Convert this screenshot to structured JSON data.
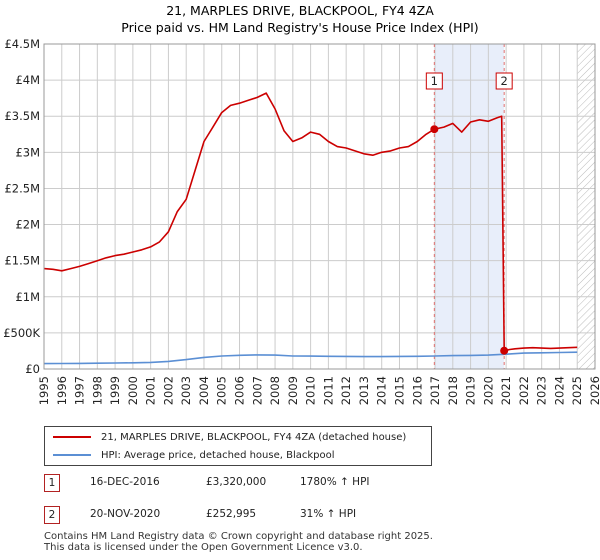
{
  "chart_data": {
    "type": "line",
    "title": "21, MARPLES DRIVE, BLACKPOOL, FY4 4ZA",
    "subtitle": "Price paid vs. HM Land Registry's House Price Index (HPI)",
    "xlabel": "",
    "ylabel": "",
    "xlim": [
      1995,
      2026
    ],
    "ylim": [
      0,
      4500000
    ],
    "y_ticks": [
      0,
      500000,
      1000000,
      1500000,
      2000000,
      2500000,
      3000000,
      3500000,
      4000000,
      4500000
    ],
    "y_tick_labels": [
      "£0",
      "£500K",
      "£1M",
      "£1.5M",
      "£2M",
      "£2.5M",
      "£3M",
      "£3.5M",
      "£4M",
      "£4.5M"
    ],
    "x_ticks": [
      1995,
      1996,
      1997,
      1998,
      1999,
      2000,
      2001,
      2002,
      2003,
      2004,
      2005,
      2006,
      2007,
      2008,
      2009,
      2010,
      2011,
      2012,
      2013,
      2014,
      2015,
      2016,
      2017,
      2018,
      2019,
      2020,
      2021,
      2022,
      2023,
      2024,
      2025,
      2026
    ],
    "x_tick_labels": [
      "1995",
      "1996",
      "1997",
      "1998",
      "1999",
      "2000",
      "2001",
      "2002",
      "2003",
      "2004",
      "2005",
      "2006",
      "2007",
      "2008",
      "2009",
      "2010",
      "2011",
      "2012",
      "2013",
      "2014",
      "2015",
      "2016",
      "2017",
      "2018",
      "2019",
      "2020",
      "2021",
      "2022",
      "2023",
      "2024",
      "2025",
      "2026"
    ],
    "grid": true,
    "series": [
      {
        "name": "21, MARPLES DRIVE, BLACKPOOL, FY4 4ZA (detached house)",
        "color": "#cc0000",
        "x": [
          1995.0,
          1995.5,
          1996.0,
          1996.5,
          1997.0,
          1997.5,
          1998.0,
          1998.5,
          1999.0,
          1999.5,
          2000.0,
          2000.5,
          2001.0,
          2001.5,
          2002.0,
          2002.5,
          2003.0,
          2003.5,
          2004.0,
          2004.5,
          2005.0,
          2005.5,
          2006.0,
          2006.5,
          2007.0,
          2007.5,
          2008.0,
          2008.5,
          2009.0,
          2009.5,
          2010.0,
          2010.5,
          2011.0,
          2011.5,
          2012.0,
          2012.5,
          2013.0,
          2013.5,
          2014.0,
          2014.5,
          2015.0,
          2015.5,
          2016.0,
          2016.5,
          2016.96,
          2017.5,
          2018.0,
          2018.5,
          2019.0,
          2019.5,
          2020.0,
          2020.5,
          2020.75,
          2020.89,
          2021.2,
          2021.5,
          2022.0,
          2022.5,
          2023.0,
          2023.5,
          2024.0,
          2024.5,
          2025.0
        ],
        "values": [
          1390000,
          1380000,
          1360000,
          1390000,
          1420000,
          1460000,
          1500000,
          1540000,
          1570000,
          1590000,
          1620000,
          1650000,
          1690000,
          1760000,
          1900000,
          2180000,
          2350000,
          2750000,
          3150000,
          3350000,
          3550000,
          3650000,
          3680000,
          3720000,
          3760000,
          3820000,
          3600000,
          3300000,
          3150000,
          3200000,
          3280000,
          3250000,
          3150000,
          3080000,
          3060000,
          3020000,
          2980000,
          2960000,
          3000000,
          3020000,
          3060000,
          3080000,
          3150000,
          3250000,
          3320000,
          3350000,
          3400000,
          3280000,
          3420000,
          3450000,
          3430000,
          3480000,
          3500000,
          252995,
          270000,
          280000,
          290000,
          295000,
          290000,
          285000,
          290000,
          295000,
          300000
        ]
      },
      {
        "name": "HPI: Average price, detached house, Blackpool",
        "color": "#5b8fd4",
        "x": [
          1995.0,
          1996.0,
          1997.0,
          1998.0,
          1999.0,
          2000.0,
          2001.0,
          2002.0,
          2003.0,
          2004.0,
          2005.0,
          2006.0,
          2007.0,
          2008.0,
          2009.0,
          2010.0,
          2011.0,
          2012.0,
          2013.0,
          2014.0,
          2015.0,
          2016.0,
          2017.0,
          2018.0,
          2019.0,
          2020.0,
          2021.0,
          2022.0,
          2023.0,
          2024.0,
          2025.0
        ],
        "values": [
          75000,
          76000,
          78000,
          80000,
          83000,
          86000,
          92000,
          105000,
          130000,
          160000,
          180000,
          190000,
          195000,
          192000,
          180000,
          178000,
          176000,
          174000,
          172000,
          172000,
          174000,
          176000,
          180000,
          185000,
          188000,
          192000,
          205000,
          220000,
          225000,
          228000,
          232000
        ]
      }
    ],
    "annotations": [
      {
        "label": "1",
        "x": 2016.96,
        "value": 3320000
      },
      {
        "label": "2",
        "x": 2020.89,
        "value": 252995
      }
    ],
    "shaded_span": [
      2016.96,
      2020.89
    ],
    "future_from": 2025.0
  },
  "legend": {
    "items": [
      {
        "label": "21, MARPLES DRIVE, BLACKPOOL, FY4 4ZA (detached house)",
        "color": "#cc0000"
      },
      {
        "label": "HPI: Average price, detached house, Blackpool",
        "color": "#5b8fd4"
      }
    ]
  },
  "transactions": [
    {
      "num": "1",
      "date": "16-DEC-2016",
      "price": "£3,320,000",
      "hpi": "1780% ↑ HPI"
    },
    {
      "num": "2",
      "date": "20-NOV-2020",
      "price": "£252,995",
      "hpi": "31% ↑ HPI"
    }
  ],
  "footer": {
    "line1": "Contains HM Land Registry data © Crown copyright and database right 2025.",
    "line2": "This data is licensed under the Open Government Licence v3.0."
  }
}
